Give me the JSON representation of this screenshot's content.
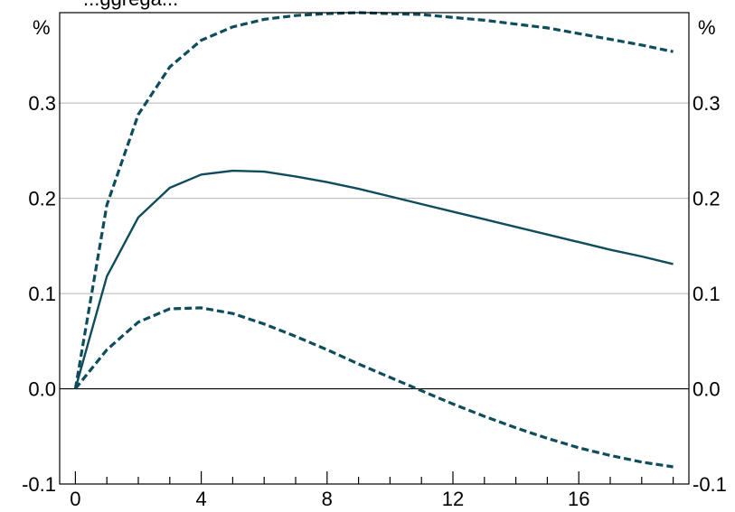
{
  "chart_data": {
    "type": "line",
    "title": "...ggrega...",
    "ylabel_left": "%",
    "ylabel_right": "%",
    "xlim": [
      -0.5,
      19.5
    ],
    "ylim": [
      -0.1,
      0.395
    ],
    "xticks_major": [
      0,
      4,
      8,
      12,
      16
    ],
    "xtick_labels": [
      "0",
      "4",
      "8",
      "12",
      "16"
    ],
    "xticks_minor": [
      1,
      2,
      3,
      5,
      6,
      7,
      9,
      10,
      11,
      13,
      14,
      15,
      17,
      18,
      19
    ],
    "yticks": [
      -0.1,
      0.0,
      0.1,
      0.2,
      0.3
    ],
    "ytick_labels": [
      "-0.1",
      "0.0",
      "0.1",
      "0.2",
      "0.3"
    ],
    "grid": true,
    "zero_line": true,
    "line_color": "#0f4c5c",
    "x": [
      0,
      1,
      2,
      3,
      4,
      5,
      6,
      7,
      8,
      9,
      10,
      11,
      12,
      13,
      14,
      15,
      16,
      17,
      18,
      19
    ],
    "series": [
      {
        "style": "dashed",
        "values": [
          0.0,
          0.193,
          0.288,
          0.338,
          0.366,
          0.38,
          0.388,
          0.392,
          0.394,
          0.395,
          0.394,
          0.393,
          0.39,
          0.387,
          0.383,
          0.379,
          0.373,
          0.367,
          0.361,
          0.354
        ]
      },
      {
        "style": "solid",
        "values": [
          0.0,
          0.118,
          0.18,
          0.211,
          0.225,
          0.229,
          0.228,
          0.223,
          0.217,
          0.21,
          0.202,
          0.194,
          0.186,
          0.178,
          0.17,
          0.162,
          0.154,
          0.146,
          0.139,
          0.131
        ]
      },
      {
        "style": "dashed",
        "values": [
          0.0,
          0.041,
          0.07,
          0.084,
          0.085,
          0.079,
          0.068,
          0.055,
          0.041,
          0.026,
          0.012,
          -0.002,
          -0.016,
          -0.029,
          -0.041,
          -0.052,
          -0.062,
          -0.07,
          -0.077,
          -0.082
        ]
      }
    ]
  }
}
